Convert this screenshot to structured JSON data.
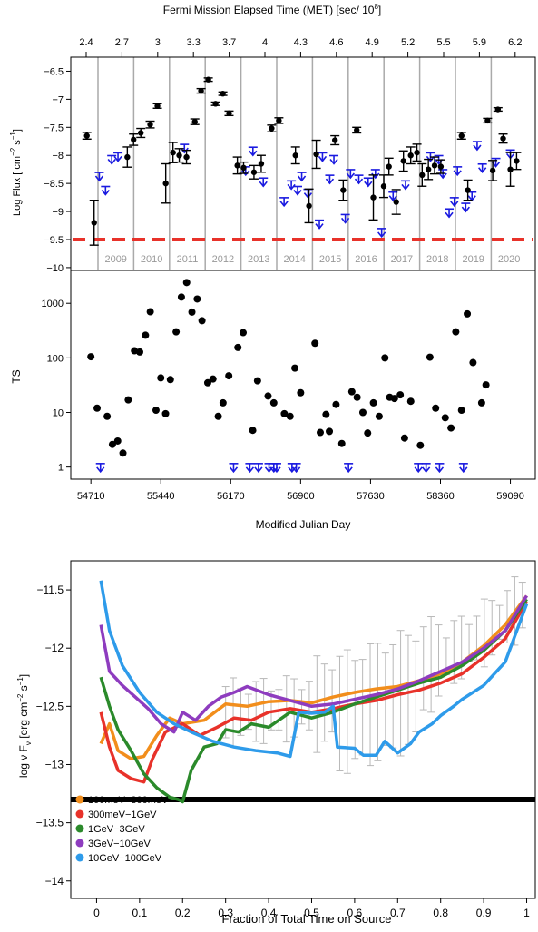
{
  "chart_data": [
    {
      "type": "scatter",
      "panel": "lightcurve",
      "top_axis_label": "Fermi Mission Elapsed Time (MET) [sec/ 10",
      "top_axis_label_sup": "8",
      "top_axis_label_end": "]",
      "top_ticks": [
        "2.4",
        "2.7",
        "3",
        "3.3",
        "3.7",
        "4",
        "4.3",
        "4.6",
        "4.9",
        "5.2",
        "5.5",
        "5.9",
        "6.2"
      ],
      "ylabel": "Log Flux [ cm",
      "ylabel_sup1": "−2",
      "ylabel_mid": " s",
      "ylabel_sup2": "−1",
      "ylabel_end": "]",
      "ylim": [
        -10.05,
        -6.25
      ],
      "yticks": [
        -10,
        -9.5,
        -9,
        -8.5,
        -8,
        -7.5,
        -7,
        -6.5
      ],
      "ytick_labels": [
        "−10",
        "−9.5",
        "−9",
        "−8.5",
        "−8",
        "−7.5",
        "−7",
        "−6.5"
      ],
      "threshold": -9.5,
      "years": [
        "2009",
        "2010",
        "2011",
        "2012",
        "2013",
        "2014",
        "2015",
        "2016",
        "2017",
        "2018",
        "2019",
        "2020"
      ],
      "detections": [
        {
          "x": 0.5,
          "y": -7.65,
          "err": 0.06
        },
        {
          "x": 1.2,
          "y": -9.2,
          "err": 0.4
        },
        {
          "x": 4.4,
          "y": -8.03,
          "err": 0.18
        },
        {
          "x": 5.0,
          "y": -7.72,
          "err": 0.1
        },
        {
          "x": 5.7,
          "y": -7.6,
          "err": 0.08
        },
        {
          "x": 6.6,
          "y": -7.45,
          "err": 0.06
        },
        {
          "x": 7.3,
          "y": -7.12,
          "err": 0.04
        },
        {
          "x": 8.1,
          "y": -8.5,
          "err": 0.35
        },
        {
          "x": 8.8,
          "y": -7.95,
          "err": 0.18
        },
        {
          "x": 9.4,
          "y": -8.0,
          "err": 0.12
        },
        {
          "x": 10.1,
          "y": -8.03,
          "err": 0.12
        },
        {
          "x": 10.9,
          "y": -7.4,
          "err": 0.05
        },
        {
          "x": 11.5,
          "y": -6.85,
          "err": 0.04
        },
        {
          "x": 12.2,
          "y": -6.65,
          "err": 0.03
        },
        {
          "x": 12.9,
          "y": -7.08,
          "err": 0.03
        },
        {
          "x": 13.6,
          "y": -6.9,
          "err": 0.03
        },
        {
          "x": 14.2,
          "y": -7.25,
          "err": 0.04
        },
        {
          "x": 15.0,
          "y": -8.18,
          "err": 0.15
        },
        {
          "x": 15.6,
          "y": -8.22,
          "err": 0.1
        },
        {
          "x": 16.6,
          "y": -8.3,
          "err": 0.12
        },
        {
          "x": 17.3,
          "y": -8.15,
          "err": 0.15
        },
        {
          "x": 18.3,
          "y": -7.52,
          "err": 0.06
        },
        {
          "x": 19.0,
          "y": -7.38,
          "err": 0.05
        },
        {
          "x": 20.6,
          "y": -8.0,
          "err": 0.15
        },
        {
          "x": 21.9,
          "y": -8.9,
          "err": 0.3
        },
        {
          "x": 22.6,
          "y": -7.98,
          "err": 0.25
        },
        {
          "x": 24.4,
          "y": -7.73,
          "err": 0.08
        },
        {
          "x": 25.2,
          "y": -8.62,
          "err": 0.18
        },
        {
          "x": 26.5,
          "y": -7.55,
          "err": 0.05
        },
        {
          "x": 28.1,
          "y": -8.75,
          "err": 0.4
        },
        {
          "x": 29.1,
          "y": -8.55,
          "err": 0.2
        },
        {
          "x": 29.6,
          "y": -8.2,
          "err": 0.15
        },
        {
          "x": 30.3,
          "y": -8.83,
          "err": 0.22
        },
        {
          "x": 31.0,
          "y": -8.1,
          "err": 0.18
        },
        {
          "x": 31.7,
          "y": -8.0,
          "err": 0.15
        },
        {
          "x": 32.3,
          "y": -7.95,
          "err": 0.15
        },
        {
          "x": 32.8,
          "y": -8.35,
          "err": 0.2
        },
        {
          "x": 33.4,
          "y": -8.25,
          "err": 0.18
        },
        {
          "x": 34.0,
          "y": -8.18,
          "err": 0.15
        },
        {
          "x": 34.6,
          "y": -8.2,
          "err": 0.12
        },
        {
          "x": 36.6,
          "y": -7.65,
          "err": 0.06
        },
        {
          "x": 37.2,
          "y": -8.62,
          "err": 0.18
        },
        {
          "x": 39.1,
          "y": -7.38,
          "err": 0.04
        },
        {
          "x": 39.6,
          "y": -8.27,
          "err": 0.18
        },
        {
          "x": 40.1,
          "y": -7.18,
          "err": 0.03
        },
        {
          "x": 40.6,
          "y": -7.7,
          "err": 0.08
        },
        {
          "x": 41.3,
          "y": -8.25,
          "err": 0.3
        },
        {
          "x": 41.9,
          "y": -8.1,
          "err": 0.15
        }
      ],
      "upper_limits": [
        {
          "x": 1.7,
          "y": -8.45
        },
        {
          "x": 2.3,
          "y": -8.7
        },
        {
          "x": 2.9,
          "y": -8.15
        },
        {
          "x": 3.5,
          "y": -8.1
        },
        {
          "x": 9.9,
          "y": -7.95
        },
        {
          "x": 15.8,
          "y": -8.35
        },
        {
          "x": 16.5,
          "y": -8.0
        },
        {
          "x": 17.5,
          "y": -8.55
        },
        {
          "x": 19.5,
          "y": -8.9
        },
        {
          "x": 20.2,
          "y": -8.6
        },
        {
          "x": 20.8,
          "y": -8.7
        },
        {
          "x": 21.2,
          "y": -8.45
        },
        {
          "x": 21.8,
          "y": -8.75
        },
        {
          "x": 22.9,
          "y": -9.3
        },
        {
          "x": 23.2,
          "y": -8.1
        },
        {
          "x": 23.9,
          "y": -8.5
        },
        {
          "x": 24.3,
          "y": -8.15
        },
        {
          "x": 25.4,
          "y": -9.2
        },
        {
          "x": 25.9,
          "y": -8.4
        },
        {
          "x": 26.7,
          "y": -8.5
        },
        {
          "x": 27.6,
          "y": -8.55
        },
        {
          "x": 28.3,
          "y": -8.4
        },
        {
          "x": 28.9,
          "y": -9.45
        },
        {
          "x": 30.0,
          "y": -8.8
        },
        {
          "x": 31.2,
          "y": -8.6
        },
        {
          "x": 33.6,
          "y": -8.1
        },
        {
          "x": 34.4,
          "y": -8.15
        },
        {
          "x": 34.8,
          "y": -8.4
        },
        {
          "x": 35.4,
          "y": -9.1
        },
        {
          "x": 35.9,
          "y": -8.9
        },
        {
          "x": 36.2,
          "y": -8.35
        },
        {
          "x": 37.0,
          "y": -9.0
        },
        {
          "x": 37.6,
          "y": -8.8
        },
        {
          "x": 38.1,
          "y": -7.9
        },
        {
          "x": 38.6,
          "y": -8.3
        },
        {
          "x": 39.9,
          "y": -8.2
        },
        {
          "x": 41.3,
          "y": -8.05
        }
      ]
    },
    {
      "type": "scatter",
      "panel": "ts",
      "ylabel": "TS",
      "xlabel": "Modified Julian Day",
      "yscale": "log",
      "ylim": [
        0.6,
        4000
      ],
      "yticks": [
        1,
        10,
        100,
        1000
      ],
      "ytick_labels": [
        "1",
        "10",
        "100",
        "1000"
      ],
      "xlim": [
        54500,
        59350
      ],
      "xticks": [
        54710,
        55440,
        56170,
        56900,
        57630,
        58360,
        59090
      ],
      "xtick_labels": [
        "54710",
        "55440",
        "56170",
        "56900",
        "57630",
        "58360",
        "59090"
      ],
      "ts_points": [
        {
          "x": 54710,
          "y": 105
        },
        {
          "x": 54775,
          "y": 12
        },
        {
          "x": 54880,
          "y": 8.5
        },
        {
          "x": 54935,
          "y": 2.6
        },
        {
          "x": 54990,
          "y": 3.0
        },
        {
          "x": 55045,
          "y": 1.8
        },
        {
          "x": 55100,
          "y": 17
        },
        {
          "x": 55165,
          "y": 135
        },
        {
          "x": 55220,
          "y": 128
        },
        {
          "x": 55280,
          "y": 260
        },
        {
          "x": 55330,
          "y": 700
        },
        {
          "x": 55390,
          "y": 11
        },
        {
          "x": 55440,
          "y": 43
        },
        {
          "x": 55490,
          "y": 9.5
        },
        {
          "x": 55540,
          "y": 40
        },
        {
          "x": 55600,
          "y": 300
        },
        {
          "x": 55655,
          "y": 1300
        },
        {
          "x": 55710,
          "y": 2400
        },
        {
          "x": 55765,
          "y": 690
        },
        {
          "x": 55820,
          "y": 1200
        },
        {
          "x": 55870,
          "y": 480
        },
        {
          "x": 55930,
          "y": 35
        },
        {
          "x": 55985,
          "y": 41
        },
        {
          "x": 56040,
          "y": 8.5
        },
        {
          "x": 56090,
          "y": 15
        },
        {
          "x": 56150,
          "y": 47
        },
        {
          "x": 56245,
          "y": 155
        },
        {
          "x": 56300,
          "y": 290
        },
        {
          "x": 56400,
          "y": 4.7
        },
        {
          "x": 56450,
          "y": 38
        },
        {
          "x": 56560,
          "y": 20
        },
        {
          "x": 56620,
          "y": 15
        },
        {
          "x": 56730,
          "y": 9.5
        },
        {
          "x": 56790,
          "y": 8.5
        },
        {
          "x": 56840,
          "y": 65
        },
        {
          "x": 56900,
          "y": 23
        },
        {
          "x": 57050,
          "y": 185
        },
        {
          "x": 57105,
          "y": 4.3
        },
        {
          "x": 57165,
          "y": 9.2
        },
        {
          "x": 57200,
          "y": 4.5
        },
        {
          "x": 57270,
          "y": 14
        },
        {
          "x": 57330,
          "y": 2.7
        },
        {
          "x": 57435,
          "y": 24
        },
        {
          "x": 57490,
          "y": 19
        },
        {
          "x": 57550,
          "y": 10
        },
        {
          "x": 57600,
          "y": 4.2
        },
        {
          "x": 57660,
          "y": 15
        },
        {
          "x": 57720,
          "y": 8.5
        },
        {
          "x": 57780,
          "y": 100
        },
        {
          "x": 57830,
          "y": 19
        },
        {
          "x": 57880,
          "y": 18
        },
        {
          "x": 57940,
          "y": 21
        },
        {
          "x": 57985,
          "y": 3.4
        },
        {
          "x": 58050,
          "y": 16
        },
        {
          "x": 58150,
          "y": 2.5
        },
        {
          "x": 58250,
          "y": 103
        },
        {
          "x": 58310,
          "y": 12
        },
        {
          "x": 58410,
          "y": 8
        },
        {
          "x": 58470,
          "y": 5.2
        },
        {
          "x": 58520,
          "y": 300
        },
        {
          "x": 58580,
          "y": 11
        },
        {
          "x": 58640,
          "y": 640
        },
        {
          "x": 58700,
          "y": 82
        },
        {
          "x": 58790,
          "y": 15
        },
        {
          "x": 58835,
          "y": 32
        }
      ],
      "ts_upper_limits": [
        54810,
        56200,
        56370,
        56460,
        56570,
        56620,
        56650,
        56810,
        56855,
        57400,
        58130,
        58210,
        58350,
        58600
      ]
    },
    {
      "type": "line",
      "panel": "spectral",
      "xlabel": "Fraction of Total Time on Source",
      "ylabel": "log  ν F",
      "ylabel_sub": "ν",
      "ylabel_units": " [erg cm",
      "ylabel_sup1": "−2",
      "ylabel_mid": "  s",
      "ylabel_sup2": "−1",
      "ylabel_end": "]",
      "xlim": [
        -0.06,
        1.02
      ],
      "ylim": [
        -14.15,
        -11.25
      ],
      "xticks": [
        0,
        0.1,
        0.2,
        0.3,
        0.4,
        0.5,
        0.6,
        0.7,
        0.8,
        0.9,
        1
      ],
      "xtick_labels": [
        "0",
        "0.1",
        "0.2",
        "0.3",
        "0.4",
        "0.5",
        "0.6",
        "0.7",
        "0.8",
        "0.9",
        "1"
      ],
      "yticks": [
        -14,
        -13.5,
        -13,
        -12.5,
        -12,
        -11.5
      ],
      "ytick_labels": [
        "−14",
        "−13.5",
        "−13",
        "−12.5",
        "−12",
        "−11.5"
      ],
      "threshold": -13.3,
      "series": [
        {
          "name": "100meV−300meV",
          "color": "#f28e1c",
          "x": [
            0.01,
            0.03,
            0.05,
            0.08,
            0.11,
            0.14,
            0.17,
            0.2,
            0.25,
            0.3,
            0.35,
            0.4,
            0.45,
            0.5,
            0.55,
            0.6,
            0.65,
            0.7,
            0.75,
            0.8,
            0.85,
            0.9,
            0.95,
            1.0
          ],
          "y": [
            -12.82,
            -12.65,
            -12.88,
            -12.95,
            -12.93,
            -12.75,
            -12.6,
            -12.65,
            -12.62,
            -12.48,
            -12.5,
            -12.46,
            -12.45,
            -12.47,
            -12.42,
            -12.38,
            -12.35,
            -12.33,
            -12.28,
            -12.22,
            -12.12,
            -11.98,
            -11.8,
            -11.55
          ]
        },
        {
          "name": "300meV−1GeV",
          "color": "#e8322a",
          "x": [
            0.01,
            0.03,
            0.05,
            0.08,
            0.11,
            0.13,
            0.16,
            0.2,
            0.24,
            0.28,
            0.32,
            0.36,
            0.4,
            0.45,
            0.5,
            0.55,
            0.6,
            0.65,
            0.7,
            0.75,
            0.8,
            0.85,
            0.9,
            0.95,
            1.0
          ],
          "y": [
            -12.55,
            -12.85,
            -13.05,
            -13.12,
            -13.15,
            -12.95,
            -12.72,
            -12.65,
            -12.75,
            -12.68,
            -12.6,
            -12.62,
            -12.55,
            -12.52,
            -12.55,
            -12.52,
            -12.48,
            -12.45,
            -12.4,
            -12.36,
            -12.3,
            -12.22,
            -12.08,
            -11.92,
            -11.6
          ]
        },
        {
          "name": "1GeV−3GeV",
          "color": "#2b8a2b",
          "x": [
            0.01,
            0.03,
            0.05,
            0.08,
            0.11,
            0.14,
            0.17,
            0.19,
            0.2,
            0.22,
            0.25,
            0.28,
            0.3,
            0.33,
            0.36,
            0.4,
            0.45,
            0.5,
            0.55,
            0.6,
            0.65,
            0.7,
            0.75,
            0.8,
            0.85,
            0.9,
            0.95,
            1.0
          ],
          "y": [
            -12.25,
            -12.5,
            -12.7,
            -12.88,
            -13.08,
            -13.2,
            -13.28,
            -13.3,
            -13.32,
            -13.05,
            -12.85,
            -12.82,
            -12.7,
            -12.72,
            -12.65,
            -12.68,
            -12.55,
            -12.6,
            -12.55,
            -12.48,
            -12.42,
            -12.36,
            -12.3,
            -12.25,
            -12.15,
            -12.02,
            -11.85,
            -11.58
          ]
        },
        {
          "name": "3GeV−10GeV",
          "color": "#8e3cbf",
          "x": [
            0.01,
            0.03,
            0.06,
            0.09,
            0.12,
            0.15,
            0.18,
            0.2,
            0.23,
            0.26,
            0.29,
            0.32,
            0.35,
            0.4,
            0.45,
            0.5,
            0.55,
            0.6,
            0.65,
            0.7,
            0.75,
            0.8,
            0.85,
            0.9,
            0.95,
            1.0
          ],
          "y": [
            -11.8,
            -12.2,
            -12.32,
            -12.42,
            -12.52,
            -12.65,
            -12.72,
            -12.55,
            -12.62,
            -12.5,
            -12.42,
            -12.38,
            -12.33,
            -12.4,
            -12.45,
            -12.5,
            -12.48,
            -12.44,
            -12.4,
            -12.35,
            -12.28,
            -12.2,
            -12.12,
            -12.0,
            -11.85,
            -11.55
          ]
        },
        {
          "name": "10GeV−100GeV",
          "color": "#2e9bea",
          "x": [
            0.01,
            0.03,
            0.06,
            0.1,
            0.14,
            0.18,
            0.22,
            0.27,
            0.32,
            0.37,
            0.42,
            0.45,
            0.47,
            0.5,
            0.53,
            0.55,
            0.56,
            0.6,
            0.62,
            0.65,
            0.67,
            0.7,
            0.73,
            0.75,
            0.78,
            0.8,
            0.83,
            0.85,
            0.9,
            0.95,
            1.0
          ],
          "y": [
            -11.42,
            -11.85,
            -12.15,
            -12.38,
            -12.55,
            -12.65,
            -12.72,
            -12.8,
            -12.85,
            -12.88,
            -12.9,
            -12.93,
            -12.55,
            -12.56,
            -12.55,
            -12.5,
            -12.85,
            -12.86,
            -12.92,
            -12.92,
            -12.8,
            -12.9,
            -12.82,
            -12.72,
            -12.65,
            -12.58,
            -12.5,
            -12.44,
            -12.32,
            -12.12,
            -11.62
          ]
        }
      ],
      "error_bars": {
        "x_start": 0.3,
        "x_end": 0.99,
        "n": 40
      }
    }
  ]
}
